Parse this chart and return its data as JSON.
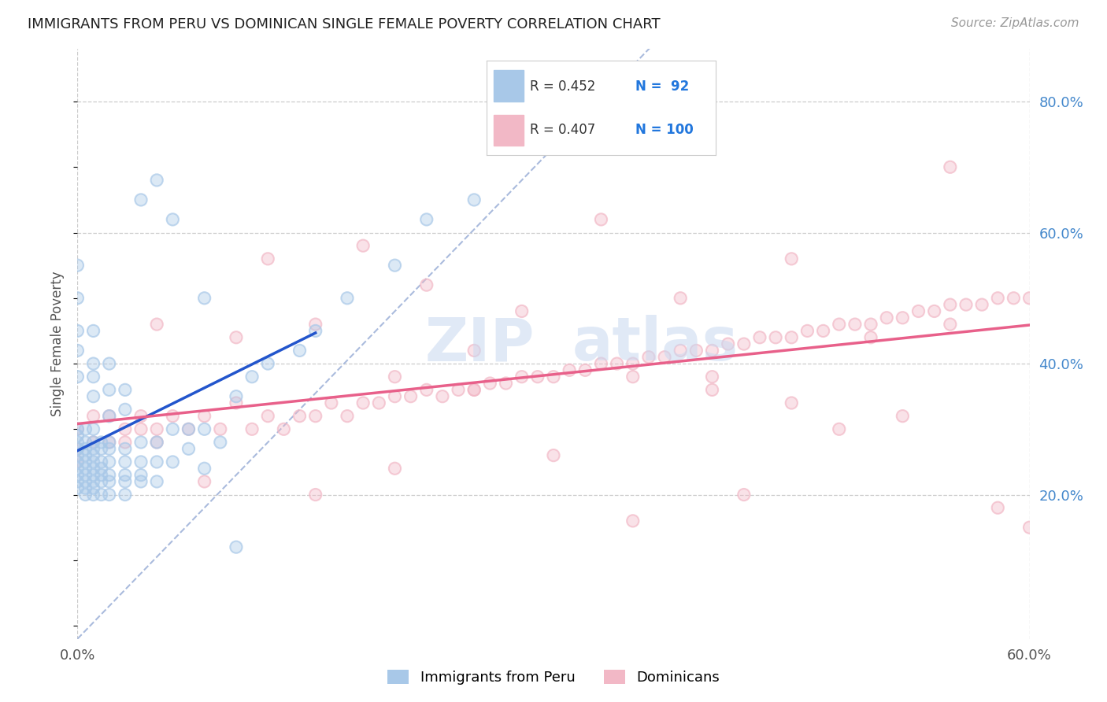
{
  "title": "IMMIGRANTS FROM PERU VS DOMINICAN SINGLE FEMALE POVERTY CORRELATION CHART",
  "source": "Source: ZipAtlas.com",
  "ylabel": "Single Female Poverty",
  "x_min": 0.0,
  "x_max": 0.6,
  "y_min": -0.02,
  "y_max": 0.88,
  "y_ticks_right": [
    0.2,
    0.4,
    0.6,
    0.8
  ],
  "y_tick_labels_right": [
    "20.0%",
    "40.0%",
    "60.0%",
    "80.0%"
  ],
  "peru_color": "#A8C8E8",
  "dominican_color": "#F2B8C6",
  "peru_line_color": "#2255CC",
  "dominican_line_color": "#E8608A",
  "diagonal_color": "#AABBDD",
  "grid_color": "#CCCCCC",
  "background_color": "#FFFFFF",
  "peru_scatter_x": [
    0.0,
    0.0,
    0.0,
    0.0,
    0.0,
    0.0,
    0.0,
    0.0,
    0.0,
    0.0,
    0.005,
    0.005,
    0.005,
    0.005,
    0.005,
    0.005,
    0.005,
    0.005,
    0.005,
    0.005,
    0.01,
    0.01,
    0.01,
    0.01,
    0.01,
    0.01,
    0.01,
    0.01,
    0.01,
    0.01,
    0.015,
    0.015,
    0.015,
    0.015,
    0.015,
    0.015,
    0.015,
    0.02,
    0.02,
    0.02,
    0.02,
    0.02,
    0.02,
    0.03,
    0.03,
    0.03,
    0.03,
    0.03,
    0.04,
    0.04,
    0.04,
    0.04,
    0.05,
    0.05,
    0.05,
    0.06,
    0.06,
    0.07,
    0.07,
    0.08,
    0.08,
    0.09,
    0.1,
    0.11,
    0.12,
    0.14,
    0.15,
    0.17,
    0.2,
    0.22,
    0.25,
    0.08,
    0.1,
    0.04,
    0.05,
    0.06,
    0.0,
    0.0,
    0.0,
    0.0,
    0.0,
    0.01,
    0.01,
    0.01,
    0.01,
    0.02,
    0.02,
    0.02,
    0.03,
    0.03
  ],
  "peru_scatter_y": [
    0.25,
    0.28,
    0.3,
    0.22,
    0.27,
    0.23,
    0.26,
    0.24,
    0.29,
    0.21,
    0.22,
    0.25,
    0.28,
    0.2,
    0.27,
    0.3,
    0.23,
    0.26,
    0.24,
    0.21,
    0.22,
    0.25,
    0.28,
    0.2,
    0.23,
    0.26,
    0.3,
    0.24,
    0.27,
    0.21,
    0.22,
    0.25,
    0.27,
    0.23,
    0.2,
    0.28,
    0.24,
    0.22,
    0.25,
    0.23,
    0.27,
    0.2,
    0.28,
    0.22,
    0.25,
    0.23,
    0.27,
    0.2,
    0.22,
    0.25,
    0.28,
    0.23,
    0.25,
    0.28,
    0.22,
    0.25,
    0.3,
    0.27,
    0.3,
    0.3,
    0.24,
    0.28,
    0.35,
    0.38,
    0.4,
    0.42,
    0.45,
    0.5,
    0.55,
    0.62,
    0.65,
    0.5,
    0.12,
    0.65,
    0.68,
    0.62,
    0.38,
    0.42,
    0.45,
    0.5,
    0.55,
    0.35,
    0.38,
    0.4,
    0.45,
    0.32,
    0.36,
    0.4,
    0.33,
    0.36
  ],
  "dominican_scatter_x": [
    0.0,
    0.0,
    0.0,
    0.01,
    0.01,
    0.02,
    0.02,
    0.03,
    0.03,
    0.04,
    0.04,
    0.05,
    0.05,
    0.06,
    0.07,
    0.08,
    0.09,
    0.1,
    0.11,
    0.12,
    0.13,
    0.14,
    0.15,
    0.16,
    0.17,
    0.18,
    0.19,
    0.2,
    0.21,
    0.22,
    0.23,
    0.24,
    0.25,
    0.26,
    0.27,
    0.28,
    0.29,
    0.3,
    0.31,
    0.32,
    0.33,
    0.34,
    0.35,
    0.36,
    0.37,
    0.38,
    0.39,
    0.4,
    0.41,
    0.42,
    0.43,
    0.44,
    0.45,
    0.46,
    0.47,
    0.48,
    0.49,
    0.5,
    0.51,
    0.52,
    0.53,
    0.54,
    0.55,
    0.56,
    0.57,
    0.58,
    0.59,
    0.6,
    0.05,
    0.08,
    0.1,
    0.12,
    0.15,
    0.18,
    0.2,
    0.22,
    0.25,
    0.28,
    0.3,
    0.33,
    0.35,
    0.38,
    0.4,
    0.42,
    0.45,
    0.48,
    0.5,
    0.52,
    0.55,
    0.58,
    0.6,
    0.15,
    0.25,
    0.35,
    0.45,
    0.55,
    0.2,
    0.4
  ],
  "dominican_scatter_y": [
    0.27,
    0.3,
    0.25,
    0.28,
    0.32,
    0.28,
    0.32,
    0.3,
    0.28,
    0.3,
    0.32,
    0.3,
    0.28,
    0.32,
    0.3,
    0.32,
    0.3,
    0.34,
    0.3,
    0.32,
    0.3,
    0.32,
    0.32,
    0.34,
    0.32,
    0.34,
    0.34,
    0.35,
    0.35,
    0.36,
    0.35,
    0.36,
    0.36,
    0.37,
    0.37,
    0.38,
    0.38,
    0.38,
    0.39,
    0.39,
    0.4,
    0.4,
    0.4,
    0.41,
    0.41,
    0.42,
    0.42,
    0.42,
    0.43,
    0.43,
    0.44,
    0.44,
    0.44,
    0.45,
    0.45,
    0.46,
    0.46,
    0.46,
    0.47,
    0.47,
    0.48,
    0.48,
    0.49,
    0.49,
    0.49,
    0.5,
    0.5,
    0.5,
    0.46,
    0.22,
    0.44,
    0.56,
    0.2,
    0.58,
    0.24,
    0.52,
    0.36,
    0.48,
    0.26,
    0.62,
    0.16,
    0.5,
    0.38,
    0.2,
    0.56,
    0.3,
    0.44,
    0.32,
    0.7,
    0.18,
    0.15,
    0.46,
    0.42,
    0.38,
    0.34,
    0.46,
    0.38,
    0.36
  ]
}
